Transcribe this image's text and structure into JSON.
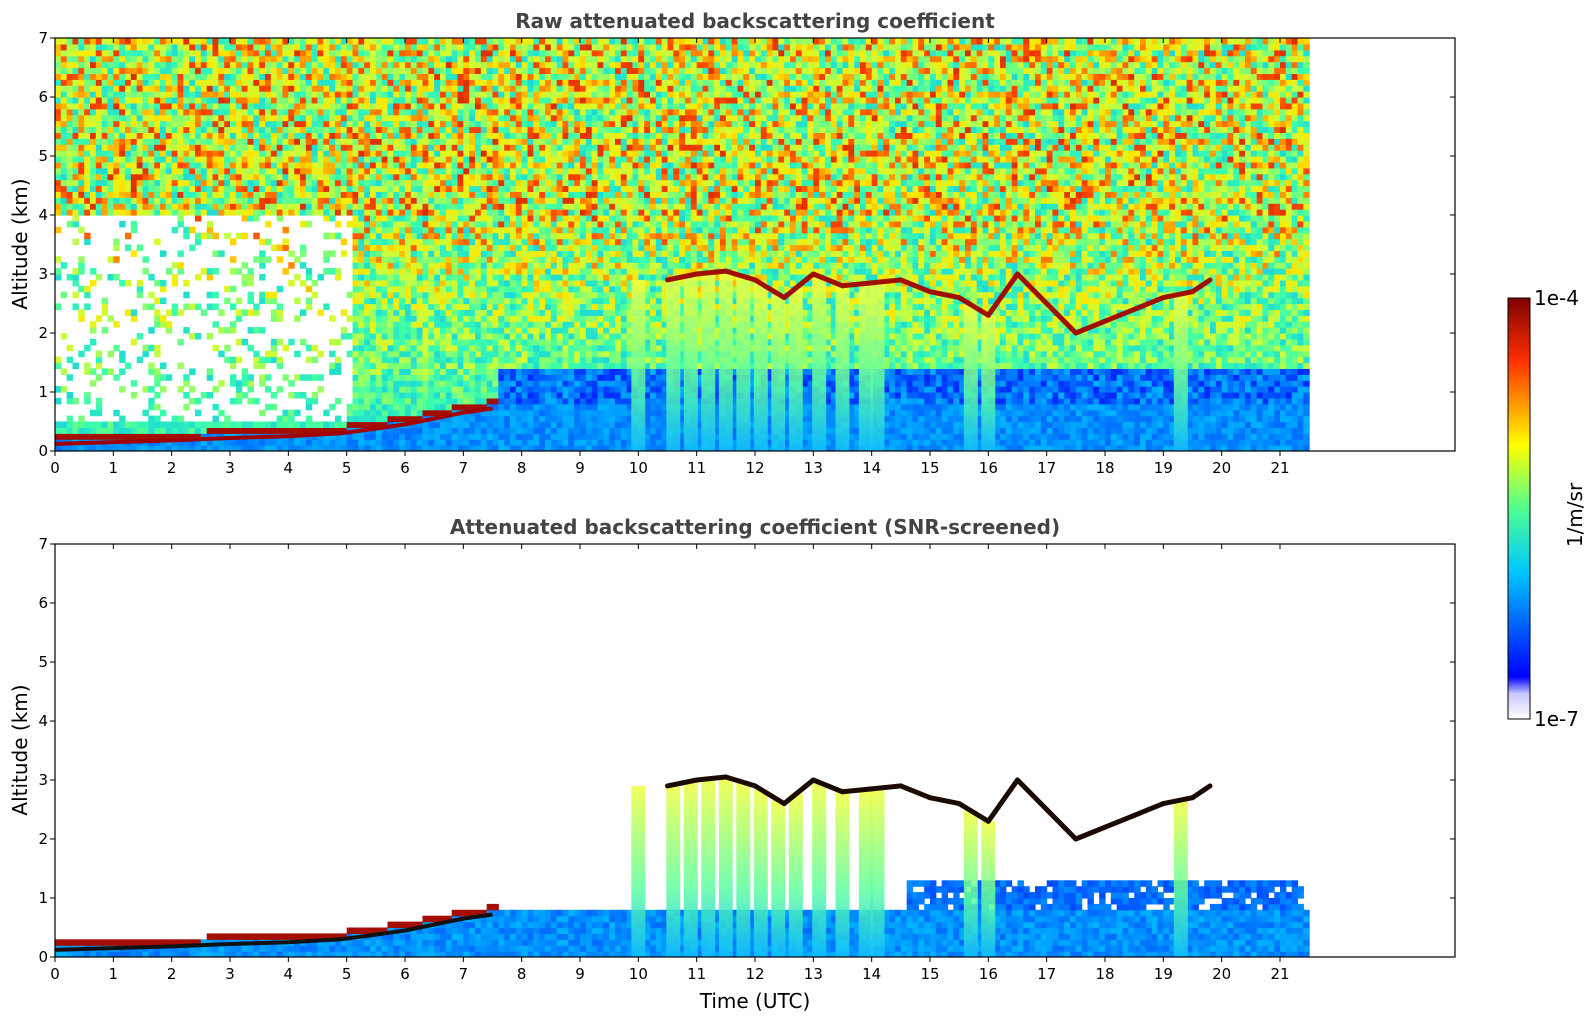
{
  "chart_data": [
    {
      "type": "heatmap",
      "title": "Raw attenuated backscattering coefficient",
      "xlabel": "",
      "ylabel": "Altitude (km)",
      "xlim": [
        0,
        24
      ],
      "ylim": [
        0,
        7
      ],
      "x_ticks": [
        0,
        1,
        2,
        3,
        4,
        5,
        6,
        7,
        8,
        9,
        10,
        11,
        12,
        13,
        14,
        15,
        16,
        17,
        18,
        19,
        20,
        21
      ],
      "y_ticks": [
        0,
        1,
        2,
        3,
        4,
        5,
        6,
        7
      ],
      "data_end_time": 21.45,
      "screened": false
    },
    {
      "type": "heatmap",
      "title": "Attenuated backscattering coefficient (SNR-screened)",
      "xlabel": "Time (UTC)",
      "ylabel": "Altitude (km)",
      "xlim": [
        0,
        24
      ],
      "ylim": [
        0,
        7
      ],
      "x_ticks": [
        0,
        1,
        2,
        3,
        4,
        5,
        6,
        7,
        8,
        9,
        10,
        11,
        12,
        13,
        14,
        15,
        16,
        17,
        18,
        19,
        20,
        21
      ],
      "y_ticks": [
        0,
        1,
        2,
        3,
        4,
        5,
        6,
        7
      ],
      "data_end_time": 21.45,
      "screened": true
    }
  ],
  "colorbar": {
    "label": "1/m/sr",
    "max_label": "1e-4",
    "min_label": "1e-7",
    "scale": "log",
    "colormap": "jet"
  },
  "features": {
    "boundary_layer_top_km": [
      [
        0,
        0.12
      ],
      [
        1,
        0.15
      ],
      [
        2,
        0.18
      ],
      [
        3,
        0.22
      ],
      [
        4,
        0.25
      ],
      [
        4.9,
        0.3
      ],
      [
        5.5,
        0.38
      ],
      [
        6,
        0.45
      ],
      [
        6.5,
        0.55
      ],
      [
        7,
        0.65
      ],
      [
        7.5,
        0.72
      ]
    ],
    "cloud_layer_km": [
      [
        10.5,
        2.9
      ],
      [
        11,
        3.0
      ],
      [
        11.5,
        3.05
      ],
      [
        12,
        2.9
      ],
      [
        12.5,
        2.6
      ],
      [
        13,
        3.0
      ],
      [
        13.5,
        2.8
      ],
      [
        14,
        2.85
      ],
      [
        14.5,
        2.9
      ],
      [
        15,
        2.7
      ],
      [
        15.5,
        2.6
      ],
      [
        16,
        2.3
      ],
      [
        16.5,
        3.0
      ],
      [
        17,
        2.5
      ],
      [
        17.5,
        2.0
      ],
      [
        18,
        2.2
      ],
      [
        18.5,
        2.4
      ],
      [
        19,
        2.6
      ],
      [
        19.5,
        2.7
      ],
      [
        19.8,
        2.9
      ]
    ],
    "precipitation_columns_utc": [
      10.0,
      10.6,
      10.9,
      11.2,
      11.5,
      11.8,
      12.1,
      12.4,
      12.7,
      13.1,
      13.5,
      13.9,
      14.1,
      15.7,
      16.0,
      19.3
    ]
  }
}
